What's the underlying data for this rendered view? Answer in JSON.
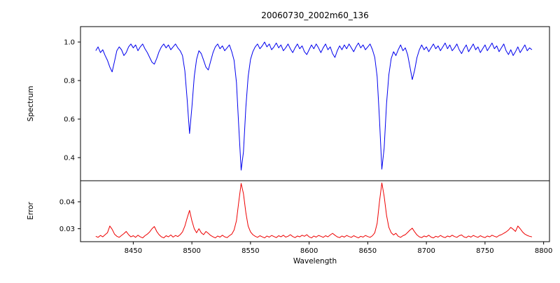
{
  "chart_data": {
    "type": "line",
    "title": "20060730_2002m60_136",
    "xlabel": "Wavelength",
    "xlim": [
      8405,
      8805
    ],
    "xticks": [
      8450,
      8500,
      8550,
      8600,
      8650,
      8700,
      8750,
      8800
    ],
    "xtick_labels": [
      "8450",
      "8500",
      "8550",
      "8600",
      "8650",
      "8700",
      "8750",
      "8800"
    ],
    "legend": "none",
    "grid": false,
    "layout": "two stacked panels sharing x-axis",
    "features": {
      "absorption_lines": [
        {
          "wavelength": 8498,
          "min_flux": 0.52
        },
        {
          "wavelength": 8542,
          "min_flux": 0.33
        },
        {
          "wavelength": 8662,
          "min_flux": 0.34
        }
      ],
      "continuum_level": 0.97,
      "error_baseline": 0.027,
      "error_peaks": [
        {
          "wavelength": 8498,
          "value": 0.037
        },
        {
          "wavelength": 8542,
          "value": 0.047
        },
        {
          "wavelength": 8662,
          "value": 0.047
        }
      ]
    },
    "panels": [
      {
        "ylabel": "Spectrum",
        "ylim": [
          0.28,
          1.08
        ],
        "yticks": [
          0.4,
          0.6,
          0.8,
          1.0
        ],
        "ytick_labels": [
          "0.4",
          "0.6",
          "0.8",
          "1.0"
        ],
        "series": {
          "name": "spectrum",
          "color": "#0000ee",
          "x0": 8418,
          "dx": 2,
          "y": [
            0.955,
            0.975,
            0.945,
            0.96,
            0.93,
            0.905,
            0.87,
            0.845,
            0.9,
            0.955,
            0.975,
            0.96,
            0.93,
            0.945,
            0.975,
            0.99,
            0.97,
            0.985,
            0.955,
            0.975,
            0.99,
            0.965,
            0.945,
            0.92,
            0.895,
            0.885,
            0.915,
            0.95,
            0.975,
            0.99,
            0.97,
            0.985,
            0.96,
            0.975,
            0.99,
            0.97,
            0.955,
            0.93,
            0.85,
            0.7,
            0.525,
            0.66,
            0.82,
            0.91,
            0.955,
            0.94,
            0.905,
            0.87,
            0.855,
            0.9,
            0.945,
            0.975,
            0.99,
            0.965,
            0.98,
            0.955,
            0.97,
            0.985,
            0.95,
            0.905,
            0.79,
            0.56,
            0.335,
            0.43,
            0.66,
            0.82,
            0.91,
            0.95,
            0.975,
            0.99,
            0.965,
            0.98,
            1.0,
            0.975,
            0.99,
            0.96,
            0.975,
            0.995,
            0.97,
            0.985,
            0.955,
            0.97,
            0.99,
            0.965,
            0.945,
            0.97,
            0.99,
            0.965,
            0.98,
            0.95,
            0.935,
            0.96,
            0.985,
            0.965,
            0.99,
            0.97,
            0.945,
            0.97,
            0.99,
            0.96,
            0.975,
            0.94,
            0.92,
            0.955,
            0.98,
            0.96,
            0.985,
            0.965,
            0.99,
            0.97,
            0.95,
            0.975,
            0.995,
            0.97,
            0.985,
            0.96,
            0.975,
            0.99,
            0.96,
            0.92,
            0.82,
            0.6,
            0.34,
            0.45,
            0.68,
            0.83,
            0.915,
            0.95,
            0.93,
            0.96,
            0.985,
            0.955,
            0.97,
            0.935,
            0.87,
            0.805,
            0.855,
            0.92,
            0.96,
            0.985,
            0.96,
            0.975,
            0.95,
            0.97,
            0.99,
            0.965,
            0.98,
            0.955,
            0.975,
            0.995,
            0.965,
            0.985,
            0.955,
            0.97,
            0.99,
            0.96,
            0.94,
            0.965,
            0.985,
            0.95,
            0.97,
            0.99,
            0.96,
            0.975,
            0.945,
            0.965,
            0.985,
            0.955,
            0.975,
            0.995,
            0.965,
            0.98,
            0.95,
            0.97,
            0.99,
            0.955,
            0.935,
            0.96,
            0.93,
            0.95,
            0.975,
            0.945,
            0.965,
            0.985,
            0.955,
            0.97,
            0.96
          ]
        }
      },
      {
        "ylabel": "Error",
        "ylim": [
          0.0252,
          0.0478
        ],
        "yticks": [
          0.03,
          0.04
        ],
        "ytick_labels": [
          "0.03",
          "0.04"
        ],
        "series": {
          "name": "error",
          "color": "#ee0000",
          "x0": 8418,
          "dx": 2,
          "y": [
            0.0272,
            0.0268,
            0.0275,
            0.027,
            0.0278,
            0.0285,
            0.031,
            0.0298,
            0.028,
            0.0272,
            0.0268,
            0.0275,
            0.0282,
            0.029,
            0.0278,
            0.027,
            0.0274,
            0.0268,
            0.0276,
            0.027,
            0.0266,
            0.0274,
            0.028,
            0.0288,
            0.03,
            0.0308,
            0.029,
            0.0278,
            0.027,
            0.0266,
            0.0274,
            0.027,
            0.0277,
            0.0269,
            0.0275,
            0.0271,
            0.0278,
            0.0288,
            0.031,
            0.034,
            0.0368,
            0.033,
            0.03,
            0.0285,
            0.03,
            0.0285,
            0.0278,
            0.029,
            0.0283,
            0.0275,
            0.027,
            0.0266,
            0.0273,
            0.0269,
            0.0276,
            0.027,
            0.0267,
            0.0274,
            0.028,
            0.0295,
            0.033,
            0.04,
            0.0468,
            0.043,
            0.036,
            0.031,
            0.0288,
            0.0278,
            0.0272,
            0.0268,
            0.0274,
            0.027,
            0.0266,
            0.0273,
            0.0269,
            0.0275,
            0.0271,
            0.0267,
            0.0274,
            0.027,
            0.0276,
            0.0269,
            0.0272,
            0.0278,
            0.0271,
            0.0267,
            0.0273,
            0.027,
            0.0276,
            0.0272,
            0.0278,
            0.027,
            0.0266,
            0.0273,
            0.0269,
            0.0275,
            0.0272,
            0.0268,
            0.0274,
            0.027,
            0.0277,
            0.0283,
            0.0276,
            0.027,
            0.0267,
            0.0273,
            0.0269,
            0.0275,
            0.0271,
            0.0268,
            0.0274,
            0.027,
            0.0266,
            0.0272,
            0.0269,
            0.0275,
            0.0271,
            0.0268,
            0.0274,
            0.0285,
            0.032,
            0.04,
            0.047,
            0.042,
            0.035,
            0.0305,
            0.0285,
            0.0277,
            0.0283,
            0.0272,
            0.0268,
            0.0274,
            0.0278,
            0.0286,
            0.0295,
            0.0302,
            0.0288,
            0.0277,
            0.027,
            0.0267,
            0.0273,
            0.027,
            0.0276,
            0.0269,
            0.0266,
            0.0272,
            0.0269,
            0.0275,
            0.027,
            0.0267,
            0.0273,
            0.027,
            0.0276,
            0.0271,
            0.0268,
            0.0274,
            0.0277,
            0.027,
            0.0267,
            0.0273,
            0.0269,
            0.0275,
            0.0271,
            0.0268,
            0.0274,
            0.027,
            0.0267,
            0.0273,
            0.027,
            0.0276,
            0.0272,
            0.0269,
            0.0275,
            0.0278,
            0.0283,
            0.0288,
            0.0295,
            0.0305,
            0.0298,
            0.029,
            0.031,
            0.03,
            0.0288,
            0.028,
            0.0275,
            0.0272,
            0.027
          ]
        }
      }
    ]
  }
}
